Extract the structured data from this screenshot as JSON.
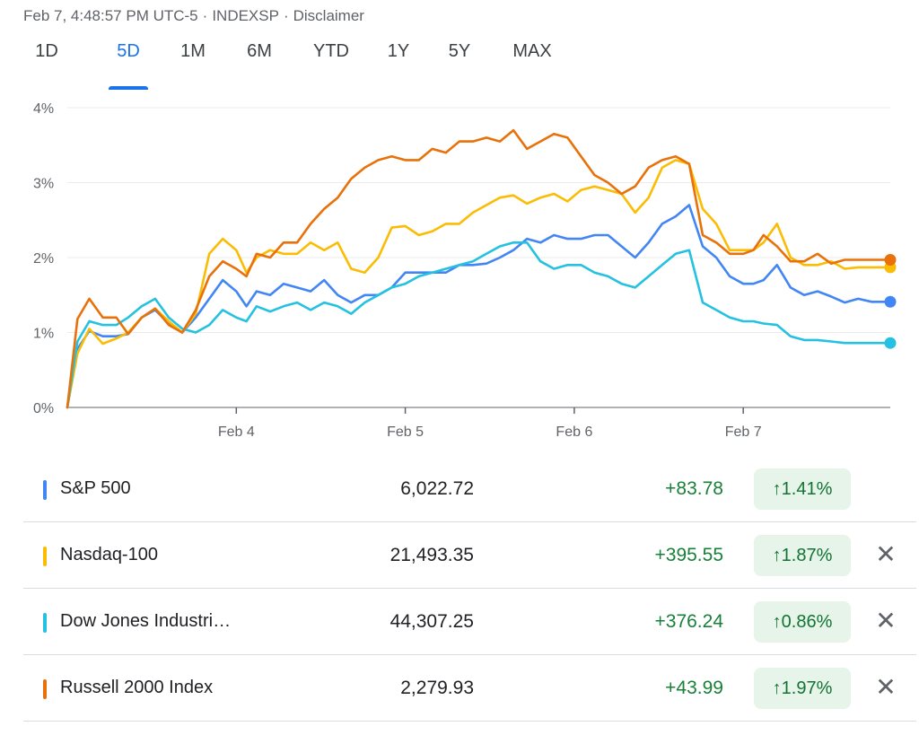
{
  "header": {
    "timestamp": "Feb 7, 4:48:57 PM UTC-5",
    "source": "INDEXSP",
    "disclaimer": "Disclaimer",
    "separator": "·"
  },
  "tabs": [
    {
      "label": "1D",
      "active": false
    },
    {
      "label": "5D",
      "active": true
    },
    {
      "label": "1M",
      "active": false
    },
    {
      "label": "6M",
      "active": false
    },
    {
      "label": "YTD",
      "active": false
    },
    {
      "label": "1Y",
      "active": false
    },
    {
      "label": "5Y",
      "active": false
    },
    {
      "label": "MAX",
      "active": false
    }
  ],
  "chart_data": {
    "type": "line",
    "y_ticks": [
      "0%",
      "1%",
      "2%",
      "3%",
      "4%"
    ],
    "x_ticks": [
      {
        "label": "Feb 4",
        "x": 1
      },
      {
        "label": "Feb 5",
        "x": 2
      },
      {
        "label": "Feb 6",
        "x": 3
      },
      {
        "label": "Feb 7",
        "x": 4
      }
    ],
    "xlim": [
      0,
      4.87
    ],
    "ylim": [
      0,
      4
    ],
    "grid": true,
    "series": [
      {
        "name": "S&P 500",
        "color": "#4285f4",
        "x": [
          0,
          0.06,
          0.13,
          0.21,
          0.29,
          0.36,
          0.44,
          0.52,
          0.6,
          0.68,
          0.76,
          0.84,
          0.92,
          1,
          1.06,
          1.12,
          1.2,
          1.28,
          1.36,
          1.44,
          1.52,
          1.6,
          1.68,
          1.76,
          1.84,
          1.92,
          2,
          2.08,
          2.16,
          2.24,
          2.32,
          2.4,
          2.48,
          2.56,
          2.64,
          2.72,
          2.8,
          2.88,
          2.96,
          3.04,
          3.12,
          3.2,
          3.28,
          3.36,
          3.44,
          3.52,
          3.6,
          3.68,
          3.76,
          3.84,
          3.92,
          4,
          4.06,
          4.12,
          4.2,
          4.28,
          4.36,
          4.44,
          4.52,
          4.6,
          4.68,
          4.76,
          4.82,
          4.87
        ],
        "y": [
          0,
          0.78,
          1.02,
          0.95,
          0.95,
          0.98,
          1.2,
          1.3,
          1.12,
          1.0,
          1.2,
          1.45,
          1.7,
          1.55,
          1.35,
          1.55,
          1.5,
          1.65,
          1.6,
          1.55,
          1.7,
          1.5,
          1.4,
          1.5,
          1.5,
          1.6,
          1.8,
          1.8,
          1.8,
          1.8,
          1.9,
          1.9,
          1.92,
          2.0,
          2.1,
          2.25,
          2.2,
          2.3,
          2.25,
          2.25,
          2.3,
          2.3,
          2.15,
          2.0,
          2.2,
          2.45,
          2.55,
          2.7,
          2.15,
          2.0,
          1.75,
          1.65,
          1.65,
          1.7,
          1.9,
          1.6,
          1.5,
          1.55,
          1.48,
          1.4,
          1.45,
          1.41,
          1.41,
          1.41
        ]
      },
      {
        "name": "Nasdaq-100",
        "color": "#fbbc04",
        "x": [
          0,
          0.06,
          0.13,
          0.21,
          0.29,
          0.36,
          0.44,
          0.52,
          0.6,
          0.68,
          0.76,
          0.84,
          0.92,
          1,
          1.06,
          1.12,
          1.2,
          1.28,
          1.36,
          1.44,
          1.52,
          1.6,
          1.68,
          1.76,
          1.84,
          1.92,
          2,
          2.08,
          2.16,
          2.24,
          2.32,
          2.4,
          2.48,
          2.56,
          2.64,
          2.72,
          2.8,
          2.88,
          2.96,
          3.04,
          3.12,
          3.2,
          3.28,
          3.36,
          3.44,
          3.52,
          3.6,
          3.68,
          3.76,
          3.84,
          3.92,
          4,
          4.06,
          4.12,
          4.2,
          4.28,
          4.36,
          4.44,
          4.52,
          4.6,
          4.68,
          4.76,
          4.82,
          4.87
        ],
        "y": [
          0,
          0.72,
          1.05,
          0.85,
          0.92,
          1.0,
          1.2,
          1.32,
          1.15,
          1.0,
          1.25,
          2.05,
          2.25,
          2.1,
          1.8,
          2.0,
          2.1,
          2.05,
          2.05,
          2.2,
          2.1,
          2.2,
          1.85,
          1.8,
          2.0,
          2.4,
          2.42,
          2.3,
          2.35,
          2.45,
          2.45,
          2.6,
          2.7,
          2.8,
          2.83,
          2.72,
          2.8,
          2.85,
          2.75,
          2.9,
          2.95,
          2.9,
          2.85,
          2.6,
          2.8,
          3.2,
          3.3,
          3.25,
          2.65,
          2.45,
          2.1,
          2.1,
          2.1,
          2.2,
          2.45,
          2.0,
          1.9,
          1.9,
          1.95,
          1.85,
          1.87,
          1.87,
          1.87,
          1.87
        ]
      },
      {
        "name": "Dow Jones Industri…",
        "color": "#24c1e0",
        "x": [
          0,
          0.06,
          0.13,
          0.21,
          0.29,
          0.36,
          0.44,
          0.52,
          0.6,
          0.68,
          0.76,
          0.84,
          0.92,
          1,
          1.06,
          1.12,
          1.2,
          1.28,
          1.36,
          1.44,
          1.52,
          1.6,
          1.68,
          1.76,
          1.84,
          1.92,
          2,
          2.08,
          2.16,
          2.24,
          2.32,
          2.4,
          2.48,
          2.56,
          2.64,
          2.72,
          2.8,
          2.88,
          2.96,
          3.04,
          3.12,
          3.2,
          3.28,
          3.36,
          3.44,
          3.52,
          3.6,
          3.68,
          3.76,
          3.84,
          3.92,
          4,
          4.06,
          4.12,
          4.2,
          4.28,
          4.36,
          4.44,
          4.52,
          4.6,
          4.68,
          4.76,
          4.82,
          4.87
        ],
        "y": [
          0,
          0.88,
          1.15,
          1.1,
          1.1,
          1.2,
          1.35,
          1.45,
          1.2,
          1.05,
          1.0,
          1.1,
          1.3,
          1.2,
          1.15,
          1.35,
          1.28,
          1.35,
          1.4,
          1.3,
          1.4,
          1.35,
          1.25,
          1.4,
          1.5,
          1.6,
          1.65,
          1.75,
          1.8,
          1.85,
          1.9,
          1.95,
          2.05,
          2.15,
          2.2,
          2.2,
          1.95,
          1.85,
          1.9,
          1.9,
          1.8,
          1.75,
          1.65,
          1.6,
          1.75,
          1.9,
          2.05,
          2.1,
          1.4,
          1.3,
          1.2,
          1.15,
          1.15,
          1.12,
          1.1,
          0.95,
          0.9,
          0.9,
          0.88,
          0.86,
          0.86,
          0.86,
          0.86,
          0.86
        ]
      },
      {
        "name": "Russell 2000 Index",
        "color": "#e8710a",
        "x": [
          0,
          0.06,
          0.13,
          0.21,
          0.29,
          0.36,
          0.44,
          0.52,
          0.6,
          0.68,
          0.76,
          0.84,
          0.92,
          1,
          1.06,
          1.12,
          1.2,
          1.28,
          1.36,
          1.44,
          1.52,
          1.6,
          1.68,
          1.76,
          1.84,
          1.92,
          2,
          2.08,
          2.16,
          2.24,
          2.32,
          2.4,
          2.48,
          2.56,
          2.64,
          2.72,
          2.8,
          2.88,
          2.96,
          3.04,
          3.12,
          3.2,
          3.28,
          3.36,
          3.44,
          3.52,
          3.6,
          3.68,
          3.76,
          3.84,
          3.92,
          4,
          4.06,
          4.12,
          4.2,
          4.28,
          4.36,
          4.44,
          4.52,
          4.6,
          4.68,
          4.76,
          4.82,
          4.87
        ],
        "y": [
          0,
          1.18,
          1.45,
          1.2,
          1.2,
          0.98,
          1.2,
          1.32,
          1.1,
          1.0,
          1.3,
          1.75,
          1.95,
          1.85,
          1.75,
          2.05,
          2.0,
          2.2,
          2.2,
          2.45,
          2.65,
          2.8,
          3.05,
          3.2,
          3.3,
          3.35,
          3.3,
          3.3,
          3.45,
          3.4,
          3.55,
          3.55,
          3.6,
          3.55,
          3.7,
          3.45,
          3.55,
          3.65,
          3.6,
          3.35,
          3.1,
          3.0,
          2.85,
          2.95,
          3.2,
          3.3,
          3.35,
          3.25,
          2.3,
          2.2,
          2.05,
          2.05,
          2.1,
          2.3,
          2.15,
          1.95,
          1.95,
          2.05,
          1.92,
          1.97,
          1.97,
          1.97,
          1.97,
          1.97
        ]
      }
    ]
  },
  "rows": [
    {
      "name": "S&P 500",
      "color": "#4285f4",
      "price": "6,022.72",
      "change": "+83.78",
      "pct": "1.41%",
      "closable": false
    },
    {
      "name": "Nasdaq-100",
      "color": "#fbbc04",
      "price": "21,493.35",
      "change": "+395.55",
      "pct": "1.87%",
      "closable": true
    },
    {
      "name": "Dow Jones Industri…",
      "color": "#24c1e0",
      "price": "44,307.25",
      "change": "+376.24",
      "pct": "0.86%",
      "closable": true
    },
    {
      "name": "Russell 2000 Index",
      "color": "#e8710a",
      "price": "2,279.93",
      "change": "+43.99",
      "pct": "1.97%",
      "closable": true
    }
  ],
  "icons": {
    "up_arrow": "↑",
    "close": "✕"
  }
}
